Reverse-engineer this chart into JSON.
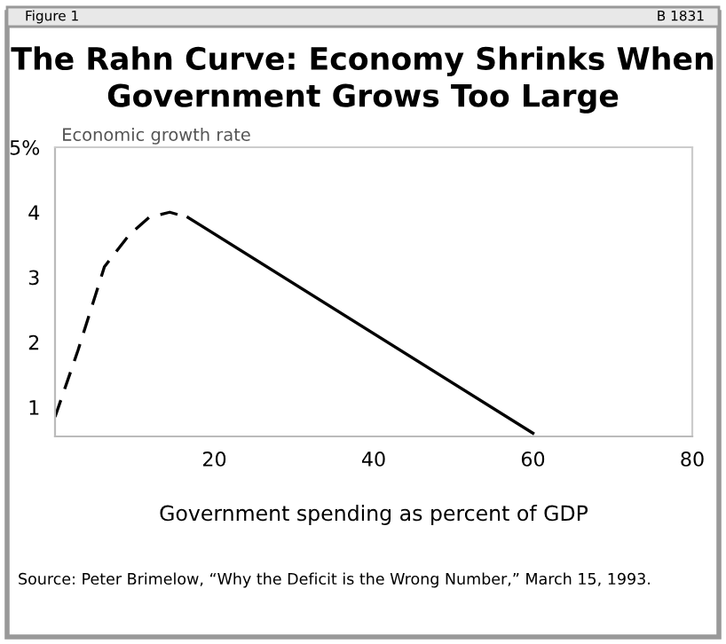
{
  "chart_data": {
    "type": "line",
    "title": "The Rahn Curve: Economy Shrinks When\nGovernment Grows Too Large",
    "xlabel": "Government spending as percent of GDP",
    "ylabel": "Economic growth rate",
    "series": [
      {
        "color": "#000000",
        "line_style": "dashed",
        "x": [
          0,
          2.9,
          6.2,
          9.3,
          11.8,
          14.4,
          16.7
        ],
        "values": [
          0.85,
          1.88,
          3.16,
          3.65,
          3.92,
          4.0,
          3.92
        ]
      },
      {
        "color": "#000000",
        "line_style": "solid",
        "x": [
          16.7,
          60
        ],
        "values": [
          3.92,
          0.6
        ]
      }
    ],
    "xlim": [
      0,
      80
    ],
    "ylim": [
      0.55,
      5
    ],
    "xticks": [
      20,
      40,
      60,
      80
    ],
    "yticks": [
      1,
      2,
      3,
      4,
      {
        "value": 5,
        "label": "5%"
      }
    ],
    "grid": false,
    "marker": "none",
    "annotations": [
      "Figure 1",
      "B 1831",
      "Source: Peter Brimelow, “Why the Deficit is the Wrong Number,” March 15, 1993."
    ]
  }
}
